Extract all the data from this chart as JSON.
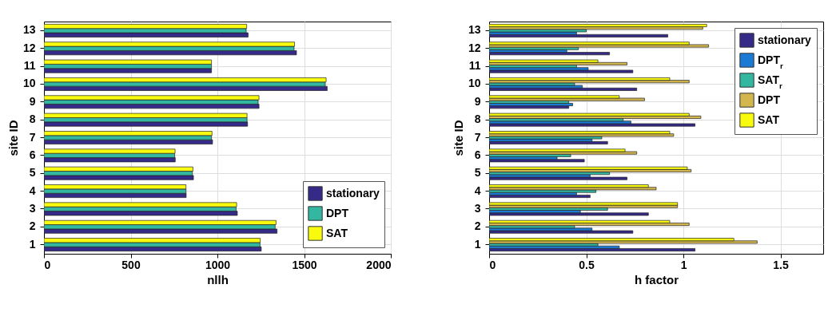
{
  "chart_data": [
    {
      "type": "bar",
      "orientation": "horizontal",
      "xlabel": "nllh",
      "ylabel": "site ID",
      "categories": [
        "13",
        "12",
        "11",
        "10",
        "9",
        "8",
        "7",
        "6",
        "5",
        "4",
        "3",
        "2",
        "1"
      ],
      "series": [
        {
          "name": "stationary",
          "color": "#352a87",
          "values": [
            1177,
            1456,
            966,
            1633,
            1240,
            1174,
            972,
            757,
            862,
            820,
            1115,
            1344,
            1253
          ]
        },
        {
          "name": "DPT",
          "color": "#33b7a0",
          "values": [
            1166,
            1442,
            966,
            1622,
            1235,
            1171,
            966,
            754,
            856,
            819,
            1108,
            1333,
            1246
          ]
        },
        {
          "name": "SAT",
          "color": "#f9fb0e",
          "values": [
            1169,
            1445,
            966,
            1627,
            1240,
            1171,
            969,
            756,
            859,
            819,
            1111,
            1338,
            1247
          ]
        }
      ],
      "xlim": [
        0,
        2000
      ],
      "xticks": [
        0,
        500,
        1000,
        1500,
        2000
      ],
      "grid": true,
      "legend": "bottom right"
    },
    {
      "type": "bar",
      "orientation": "horizontal",
      "xlabel": "h factor",
      "ylabel": "site ID",
      "categories": [
        "13",
        "12",
        "11",
        "10",
        "9",
        "8",
        "7",
        "6",
        "5",
        "4",
        "3",
        "2",
        "1"
      ],
      "series": [
        {
          "name": "stationary",
          "color": "#352a87",
          "values": [
            0.92,
            0.62,
            0.74,
            0.76,
            0.41,
            1.06,
            0.61,
            0.49,
            0.71,
            0.52,
            0.82,
            0.74,
            1.06
          ]
        },
        {
          "name": "DPT$_{r}$",
          "color": "#1a7ad4",
          "values": [
            0.45,
            0.4,
            0.51,
            0.48,
            0.43,
            0.73,
            0.53,
            0.35,
            0.52,
            0.45,
            0.47,
            0.53,
            0.67
          ]
        },
        {
          "name": "SAT$_{r}$",
          "color": "#33b7a0",
          "values": [
            0.5,
            0.46,
            0.45,
            0.44,
            0.41,
            0.69,
            0.58,
            0.42,
            0.62,
            0.55,
            0.61,
            0.44,
            0.56
          ]
        },
        {
          "name": "DPT",
          "color": "#d4b64e",
          "values": [
            1.1,
            1.13,
            0.71,
            1.03,
            0.8,
            1.09,
            0.95,
            0.76,
            1.04,
            0.86,
            0.97,
            1.03,
            1.38
          ]
        },
        {
          "name": "SAT",
          "color": "#f9fb0e",
          "values": [
            1.12,
            1.03,
            0.56,
            0.93,
            0.67,
            1.03,
            0.93,
            0.7,
            1.02,
            0.82,
            0.97,
            0.93,
            1.26
          ]
        }
      ],
      "xlim": [
        0,
        1.72
      ],
      "xticks": [
        0,
        0.5,
        1,
        1.5
      ],
      "grid": true,
      "legend": "top right"
    }
  ]
}
